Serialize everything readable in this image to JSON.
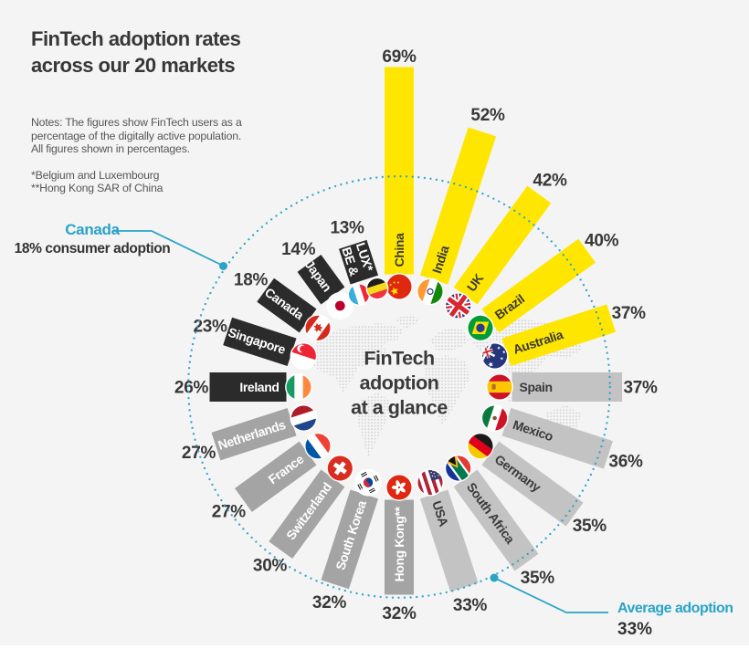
{
  "title": {
    "line1": "FinTech adoption rates",
    "line2": "across our 20 markets"
  },
  "notes": {
    "line1": "Notes: The figures show FinTech users as a",
    "line2": "percentage of the digitally active population.",
    "line3": "All figures shown in percentages.",
    "footnote1": "*Belgium and Luxembourg",
    "footnote2": "**Hong Kong SAR of China"
  },
  "center_label": {
    "line1": "FinTech",
    "line2": "adoption",
    "line3": "at a glance"
  },
  "callouts": {
    "canada": {
      "title": "Canada",
      "subtitle": "18% consumer adoption"
    },
    "average": {
      "title": "Average adoption",
      "value": "33%"
    }
  },
  "colors": {
    "teal": "#2aa3c7",
    "yellow": "#ffe600",
    "bar_light": "#c3c3c3",
    "bar_medium": "#a4a4a4",
    "bar_dark": "#2b2b2b",
    "text_dark": "#3a3a3a",
    "text_on_dark": "#ffffff",
    "background": "#f4f4f4",
    "map_dots": "#cccccc"
  },
  "chart_data": {
    "type": "bar",
    "subtype": "radial-bar",
    "title": "FinTech adoption at a glance",
    "unit": "%",
    "average_value": 33,
    "layout": "20 bars clockwise from 12 o'clock, dotted ring marks the 33% average",
    "series": [
      {
        "market": "China",
        "value": 69,
        "tier": "yellow",
        "flag": "china"
      },
      {
        "market": "India",
        "value": 52,
        "tier": "yellow",
        "flag": "india"
      },
      {
        "market": "UK",
        "value": 42,
        "tier": "yellow",
        "flag": "uk"
      },
      {
        "market": "Brazil",
        "value": 40,
        "tier": "yellow",
        "flag": "brazil"
      },
      {
        "market": "Australia",
        "value": 37,
        "tier": "yellow",
        "flag": "australia"
      },
      {
        "market": "Spain",
        "value": 37,
        "tier": "light",
        "flag": "spain"
      },
      {
        "market": "Mexico",
        "value": 36,
        "tier": "light",
        "flag": "mexico"
      },
      {
        "market": "Germany",
        "value": 35,
        "tier": "light",
        "flag": "germany"
      },
      {
        "market": "South Africa",
        "value": 35,
        "tier": "light",
        "flag": "south-africa"
      },
      {
        "market": "USA",
        "value": 33,
        "tier": "light",
        "flag": "usa"
      },
      {
        "market": "Hong Kong**",
        "value": 32,
        "tier": "medium",
        "flag": "hong-kong"
      },
      {
        "market": "South Korea",
        "value": 32,
        "tier": "medium",
        "flag": "south-korea"
      },
      {
        "market": "Switzerland",
        "value": 30,
        "tier": "medium",
        "flag": "switzerland"
      },
      {
        "market": "France",
        "value": 27,
        "tier": "medium",
        "flag": "france"
      },
      {
        "market": "Netherlands",
        "value": 27,
        "tier": "medium",
        "flag": "netherlands"
      },
      {
        "market": "Ireland",
        "value": 26,
        "tier": "dark",
        "flag": "ireland"
      },
      {
        "market": "Singapore",
        "value": 23,
        "tier": "dark",
        "flag": "singapore"
      },
      {
        "market": "Canada",
        "value": 18,
        "tier": "dark",
        "flag": "canada"
      },
      {
        "market": "Japan",
        "value": 14,
        "tier": "dark",
        "flag": "japan"
      },
      {
        "market": "BE &\nLUX*",
        "value": 13,
        "tier": "dark",
        "flag": "be-lux"
      }
    ]
  }
}
